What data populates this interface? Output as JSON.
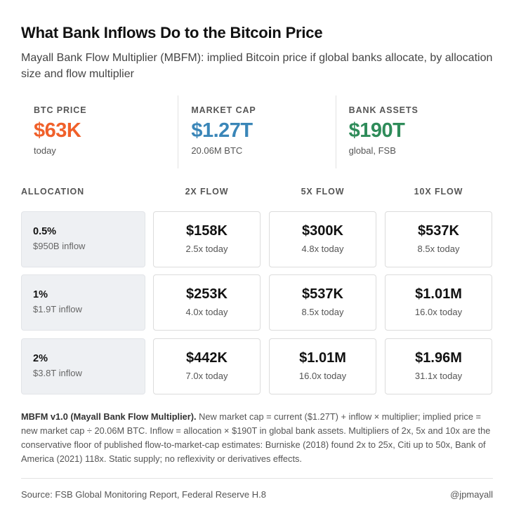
{
  "title": "What Bank Inflows Do to the Bitcoin Price",
  "subtitle": "Mayall Bank Flow Multiplier (MBFM): implied Bitcoin price if global banks allocate, by allocation size and flow multiplier",
  "stats": [
    {
      "label": "BTC PRICE",
      "value": "$63K",
      "note": "today",
      "color": "#f0602a"
    },
    {
      "label": "MARKET CAP",
      "value": "$1.27T",
      "note": "20.06M BTC",
      "color": "#3a86b8"
    },
    {
      "label": "BANK ASSETS",
      "value": "$190T",
      "note": "global, FSB",
      "color": "#2f8c5a"
    }
  ],
  "chart_data": {
    "type": "table",
    "row_header": "ALLOCATION",
    "columns": [
      "2X FLOW",
      "5X FLOW",
      "10X FLOW"
    ],
    "rows": [
      {
        "allocation": "0.5%",
        "inflow": "$950B inflow",
        "cells": [
          {
            "price": "$158K",
            "multiple": "2.5x today"
          },
          {
            "price": "$300K",
            "multiple": "4.8x today"
          },
          {
            "price": "$537K",
            "multiple": "8.5x today"
          }
        ]
      },
      {
        "allocation": "1%",
        "inflow": "$1.9T inflow",
        "cells": [
          {
            "price": "$253K",
            "multiple": "4.0x today"
          },
          {
            "price": "$537K",
            "multiple": "8.5x today"
          },
          {
            "price": "$1.01M",
            "multiple": "16.0x today"
          }
        ]
      },
      {
        "allocation": "2%",
        "inflow": "$3.8T inflow",
        "cells": [
          {
            "price": "$442K",
            "multiple": "7.0x today"
          },
          {
            "price": "$1.01M",
            "multiple": "16.0x today"
          },
          {
            "price": "$1.96M",
            "multiple": "31.1x today"
          }
        ]
      }
    ]
  },
  "footnote": {
    "bold": "MBFM v1.0 (Mayall Bank Flow Multiplier).",
    "text": " New market cap = current ($1.27T) + inflow × multiplier; implied price = new market cap ÷ 20.06M BTC. Inflow = allocation × $190T in global bank assets. Multipliers of 2x, 5x and 10x are the conservative floor of published flow-to-market-cap estimates: Burniske (2018) found 2x to 25x, Citi up to 50x, Bank of America (2021) 118x. Static supply; no reflexivity or derivatives effects."
  },
  "source": "Source: FSB Global Monitoring Report, Federal Reserve H.8",
  "handle": "@jpmayall"
}
